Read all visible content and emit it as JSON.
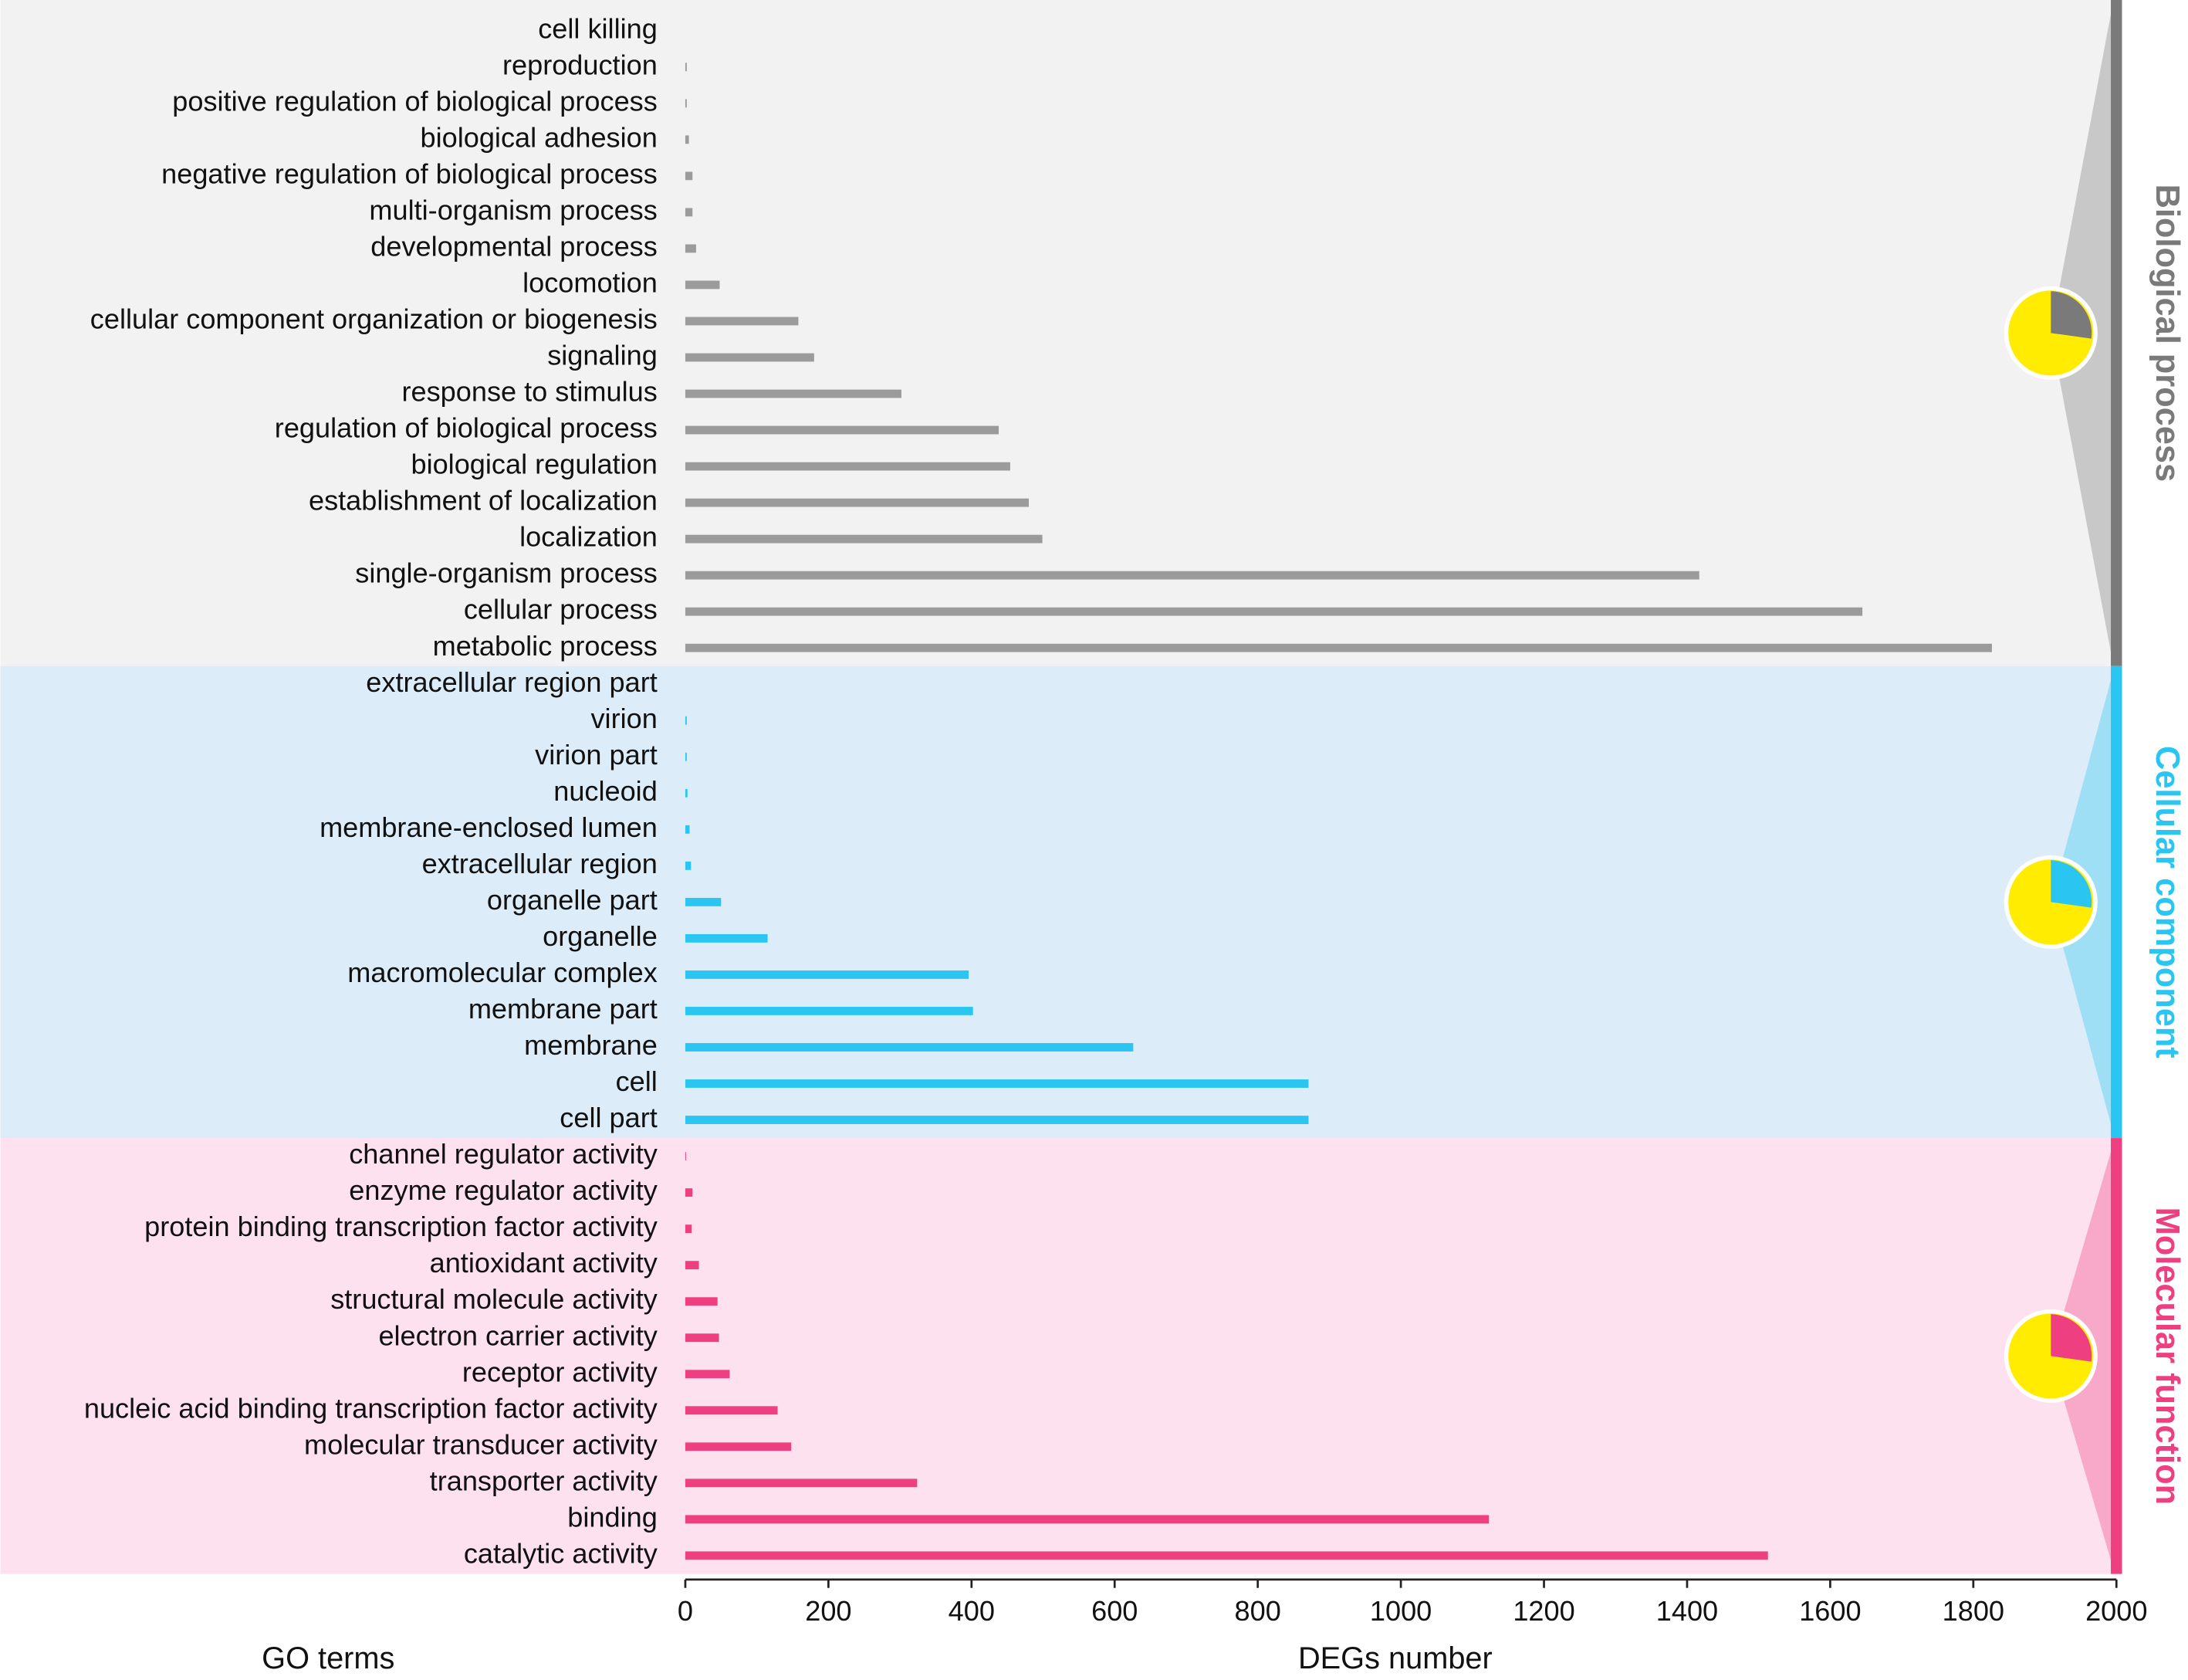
{
  "chart_data": {
    "type": "bar",
    "orientation": "horizontal",
    "y_label": "GO terms",
    "x_label": "DEGs number",
    "xlim": [
      0,
      2000
    ],
    "xticks": [
      0,
      200,
      400,
      600,
      800,
      1000,
      1200,
      1400,
      1600,
      1800,
      2000
    ],
    "groups": [
      {
        "name": "Biological process",
        "color": "#9b9b9b",
        "band_color": "#f2f2f2",
        "strip_color": "#7a7a7a",
        "categories": [
          "cell killing",
          "reproduction",
          "positive regulation of biological process",
          "biological adhesion",
          "negative regulation of biological process",
          "multi-organism process",
          "developmental process",
          "locomotion",
          "cellular component organization or biogenesis",
          "signaling",
          "response to stimulus",
          "regulation of biological process",
          "biological regulation",
          "establishment of localization",
          "localization",
          "single-organism process",
          "cellular process",
          "metabolic process"
        ],
        "values": [
          0,
          2,
          2,
          5,
          10,
          10,
          15,
          48,
          158,
          180,
          302,
          438,
          454,
          480,
          499,
          1417,
          1645,
          1826
        ]
      },
      {
        "name": "Cellular component",
        "color": "#2ac6f1",
        "band_color": "#dcedf9",
        "strip_color": "#2ac6f1",
        "categories": [
          "extracellular region part",
          "virion",
          "virion part",
          "nucleoid",
          "membrane-enclosed lumen",
          "extracellular region",
          "organelle part",
          "organelle",
          "macromolecular complex",
          "membrane part",
          "membrane",
          "cell",
          "cell part"
        ],
        "values": [
          0,
          2,
          2,
          3,
          6,
          8,
          50,
          115,
          396,
          402,
          626,
          871,
          871
        ]
      },
      {
        "name": "Molecular function",
        "color": "#ee3f80",
        "band_color": "#fde1ee",
        "strip_color": "#ee3f80",
        "categories": [
          "channel regulator activity",
          "enzyme regulator activity",
          "protein binding transcription factor activity",
          "antioxidant activity",
          "structural molecule activity",
          "electron carrier activity",
          "receptor activity",
          "nucleic acid binding transcription factor activity",
          "molecular transducer activity",
          "transporter activity",
          "binding",
          "catalytic activity"
        ],
        "values": [
          1,
          10,
          9,
          19,
          45,
          47,
          62,
          129,
          148,
          324,
          1123,
          1513
        ]
      }
    ]
  }
}
